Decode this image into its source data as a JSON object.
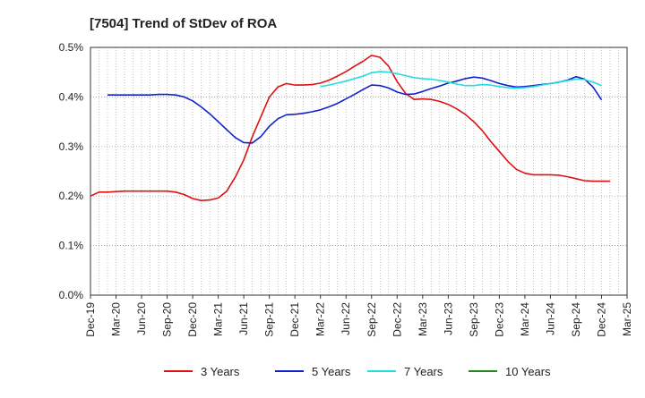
{
  "chart_data": {
    "type": "line",
    "title": "[7504]  Trend of StDev of ROA",
    "xlabel": "",
    "ylabel": "",
    "x_ticks": [
      "Dec-19",
      "Mar-20",
      "Jun-20",
      "Sep-20",
      "Dec-20",
      "Mar-21",
      "Jun-21",
      "Sep-21",
      "Dec-21",
      "Mar-22",
      "Jun-22",
      "Sep-22",
      "Dec-22",
      "Mar-23",
      "Jun-23",
      "Sep-23",
      "Dec-23",
      "Mar-24",
      "Jun-24",
      "Sep-24",
      "Dec-24",
      "Mar-25"
    ],
    "y_ticks": [
      "0.0%",
      "0.1%",
      "0.2%",
      "0.3%",
      "0.4%",
      "0.5%"
    ],
    "ylim": [
      0,
      0.5
    ],
    "x_range_months": [
      "2019-12",
      "2025-03"
    ],
    "grid": true,
    "legend_position": "bottom",
    "series": [
      {
        "name": "3 Years",
        "color": "#dd1111",
        "points": [
          [
            "2019-12",
            0.2
          ],
          [
            "2020-01",
            0.208
          ],
          [
            "2020-02",
            0.208
          ],
          [
            "2020-03",
            0.209
          ],
          [
            "2020-04",
            0.21
          ],
          [
            "2020-05",
            0.21
          ],
          [
            "2020-06",
            0.21
          ],
          [
            "2020-07",
            0.21
          ],
          [
            "2020-08",
            0.21
          ],
          [
            "2020-09",
            0.21
          ],
          [
            "2020-10",
            0.208
          ],
          [
            "2020-11",
            0.203
          ],
          [
            "2020-12",
            0.195
          ],
          [
            "2021-01",
            0.191
          ],
          [
            "2021-02",
            0.192
          ],
          [
            "2021-03",
            0.196
          ],
          [
            "2021-04",
            0.21
          ],
          [
            "2021-05",
            0.238
          ],
          [
            "2021-06",
            0.273
          ],
          [
            "2021-07",
            0.32
          ],
          [
            "2021-08",
            0.36
          ],
          [
            "2021-09",
            0.4
          ],
          [
            "2021-10",
            0.42
          ],
          [
            "2021-11",
            0.427
          ],
          [
            "2021-12",
            0.424
          ],
          [
            "2022-01",
            0.424
          ],
          [
            "2022-02",
            0.425
          ],
          [
            "2022-03",
            0.428
          ],
          [
            "2022-04",
            0.434
          ],
          [
            "2022-05",
            0.442
          ],
          [
            "2022-06",
            0.451
          ],
          [
            "2022-07",
            0.462
          ],
          [
            "2022-08",
            0.472
          ],
          [
            "2022-09",
            0.484
          ],
          [
            "2022-10",
            0.48
          ],
          [
            "2022-11",
            0.462
          ],
          [
            "2022-12",
            0.431
          ],
          [
            "2023-01",
            0.407
          ],
          [
            "2023-02",
            0.395
          ],
          [
            "2023-03",
            0.396
          ],
          [
            "2023-04",
            0.395
          ],
          [
            "2023-05",
            0.391
          ],
          [
            "2023-06",
            0.385
          ],
          [
            "2023-07",
            0.376
          ],
          [
            "2023-08",
            0.365
          ],
          [
            "2023-09",
            0.35
          ],
          [
            "2023-10",
            0.332
          ],
          [
            "2023-11",
            0.31
          ],
          [
            "2023-12",
            0.29
          ],
          [
            "2024-01",
            0.27
          ],
          [
            "2024-02",
            0.254
          ],
          [
            "2024-03",
            0.246
          ],
          [
            "2024-04",
            0.243
          ],
          [
            "2024-05",
            0.243
          ],
          [
            "2024-06",
            0.243
          ],
          [
            "2024-07",
            0.242
          ],
          [
            "2024-08",
            0.239
          ],
          [
            "2024-09",
            0.235
          ],
          [
            "2024-10",
            0.231
          ],
          [
            "2024-11",
            0.23
          ],
          [
            "2024-12",
            0.23
          ],
          [
            "2025-01",
            0.23
          ]
        ]
      },
      {
        "name": "5 Years",
        "color": "#1122cc",
        "points": [
          [
            "2020-02",
            0.404
          ],
          [
            "2020-03",
            0.404
          ],
          [
            "2020-04",
            0.404
          ],
          [
            "2020-05",
            0.404
          ],
          [
            "2020-06",
            0.404
          ],
          [
            "2020-07",
            0.404
          ],
          [
            "2020-08",
            0.405
          ],
          [
            "2020-09",
            0.405
          ],
          [
            "2020-10",
            0.404
          ],
          [
            "2020-11",
            0.4
          ],
          [
            "2020-12",
            0.392
          ],
          [
            "2021-01",
            0.38
          ],
          [
            "2021-02",
            0.366
          ],
          [
            "2021-03",
            0.35
          ],
          [
            "2021-04",
            0.334
          ],
          [
            "2021-05",
            0.318
          ],
          [
            "2021-06",
            0.308
          ],
          [
            "2021-07",
            0.307
          ],
          [
            "2021-08",
            0.32
          ],
          [
            "2021-09",
            0.341
          ],
          [
            "2021-10",
            0.356
          ],
          [
            "2021-11",
            0.364
          ],
          [
            "2021-12",
            0.365
          ],
          [
            "2022-01",
            0.367
          ],
          [
            "2022-02",
            0.37
          ],
          [
            "2022-03",
            0.374
          ],
          [
            "2022-04",
            0.38
          ],
          [
            "2022-05",
            0.387
          ],
          [
            "2022-06",
            0.396
          ],
          [
            "2022-07",
            0.405
          ],
          [
            "2022-08",
            0.415
          ],
          [
            "2022-09",
            0.424
          ],
          [
            "2022-10",
            0.423
          ],
          [
            "2022-11",
            0.418
          ],
          [
            "2022-12",
            0.41
          ],
          [
            "2023-01",
            0.405
          ],
          [
            "2023-02",
            0.406
          ],
          [
            "2023-03",
            0.411
          ],
          [
            "2023-04",
            0.417
          ],
          [
            "2023-05",
            0.422
          ],
          [
            "2023-06",
            0.428
          ],
          [
            "2023-07",
            0.432
          ],
          [
            "2023-08",
            0.437
          ],
          [
            "2023-09",
            0.44
          ],
          [
            "2023-10",
            0.438
          ],
          [
            "2023-11",
            0.433
          ],
          [
            "2023-12",
            0.427
          ],
          [
            "2024-01",
            0.423
          ],
          [
            "2024-02",
            0.42
          ],
          [
            "2024-03",
            0.421
          ],
          [
            "2024-04",
            0.423
          ],
          [
            "2024-05",
            0.425
          ],
          [
            "2024-06",
            0.427
          ],
          [
            "2024-07",
            0.43
          ],
          [
            "2024-08",
            0.434
          ],
          [
            "2024-09",
            0.441
          ],
          [
            "2024-10",
            0.436
          ],
          [
            "2024-11",
            0.42
          ],
          [
            "2024-12",
            0.394
          ]
        ]
      },
      {
        "name": "7 Years",
        "color": "#22dddd",
        "points": [
          [
            "2022-03",
            0.421
          ],
          [
            "2022-04",
            0.424
          ],
          [
            "2022-05",
            0.428
          ],
          [
            "2022-06",
            0.432
          ],
          [
            "2022-07",
            0.437
          ],
          [
            "2022-08",
            0.442
          ],
          [
            "2022-09",
            0.449
          ],
          [
            "2022-10",
            0.451
          ],
          [
            "2022-11",
            0.45
          ],
          [
            "2022-12",
            0.447
          ],
          [
            "2023-01",
            0.443
          ],
          [
            "2023-02",
            0.439
          ],
          [
            "2023-03",
            0.437
          ],
          [
            "2023-04",
            0.436
          ],
          [
            "2023-05",
            0.433
          ],
          [
            "2023-06",
            0.43
          ],
          [
            "2023-07",
            0.426
          ],
          [
            "2023-08",
            0.423
          ],
          [
            "2023-09",
            0.423
          ],
          [
            "2023-10",
            0.425
          ],
          [
            "2023-11",
            0.424
          ],
          [
            "2023-12",
            0.421
          ],
          [
            "2024-01",
            0.419
          ],
          [
            "2024-02",
            0.418
          ],
          [
            "2024-03",
            0.419
          ],
          [
            "2024-04",
            0.421
          ],
          [
            "2024-05",
            0.424
          ],
          [
            "2024-06",
            0.427
          ],
          [
            "2024-07",
            0.43
          ],
          [
            "2024-08",
            0.433
          ],
          [
            "2024-09",
            0.436
          ],
          [
            "2024-10",
            0.435
          ],
          [
            "2024-11",
            0.43
          ],
          [
            "2024-12",
            0.423
          ]
        ]
      },
      {
        "name": "10 Years",
        "color": "#228822",
        "points": []
      }
    ]
  }
}
